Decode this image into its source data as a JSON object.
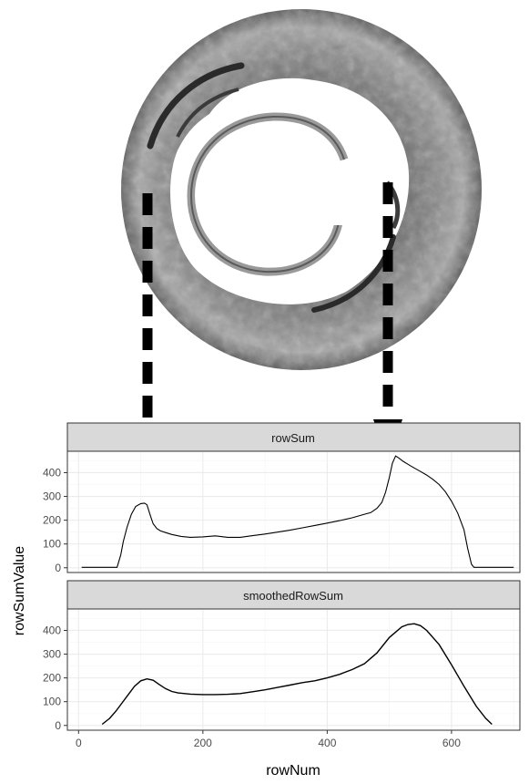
{
  "figure": {
    "description_image": "grayscale circular tissue cross-section with dashed arrows pointing to peaks"
  },
  "chart_data": {
    "type": "line",
    "xlabel": "rowNum",
    "ylabel": "rowSumValue",
    "xlim": [
      -18,
      710
    ],
    "x_ticks": [
      0,
      200,
      400,
      600
    ],
    "ylim": [
      -20,
      490
    ],
    "y_ticks": [
      0,
      100,
      200,
      300,
      400
    ],
    "panels": [
      {
        "strip": "rowSum",
        "x": [
          5,
          40,
          62,
          68,
          72,
          78,
          85,
          92,
          100,
          106,
          110,
          116,
          120,
          126,
          132,
          140,
          150,
          165,
          180,
          200,
          220,
          240,
          260,
          280,
          300,
          320,
          340,
          360,
          380,
          400,
          420,
          440,
          460,
          470,
          480,
          488,
          494,
          500,
          505,
          510,
          515,
          522,
          530,
          540,
          550,
          560,
          570,
          580,
          590,
          600,
          610,
          620,
          626,
          632,
          636,
          640,
          700
        ],
        "values": [
          2,
          2,
          2,
          55,
          110,
          170,
          225,
          258,
          270,
          272,
          265,
          215,
          185,
          165,
          155,
          148,
          140,
          132,
          128,
          130,
          134,
          128,
          128,
          135,
          142,
          150,
          158,
          168,
          178,
          188,
          198,
          210,
          225,
          232,
          250,
          275,
          318,
          380,
          440,
          470,
          462,
          448,
          435,
          420,
          405,
          390,
          372,
          350,
          320,
          280,
          230,
          160,
          80,
          15,
          2,
          2,
          2
        ]
      },
      {
        "strip": "smoothedRowSum",
        "x": [
          38,
          50,
          60,
          70,
          80,
          90,
          100,
          110,
          120,
          130,
          140,
          150,
          160,
          180,
          200,
          220,
          240,
          260,
          280,
          300,
          320,
          340,
          360,
          380,
          400,
          420,
          440,
          460,
          480,
          500,
          520,
          530,
          540,
          550,
          560,
          580,
          600,
          620,
          640,
          655,
          665
        ],
        "values": [
          5,
          30,
          60,
          95,
          130,
          165,
          188,
          196,
          190,
          172,
          155,
          143,
          137,
          132,
          130,
          130,
          131,
          134,
          142,
          150,
          160,
          170,
          180,
          188,
          200,
          215,
          235,
          260,
          305,
          370,
          415,
          425,
          428,
          420,
          400,
          340,
          255,
          165,
          80,
          30,
          5
        ]
      }
    ]
  }
}
